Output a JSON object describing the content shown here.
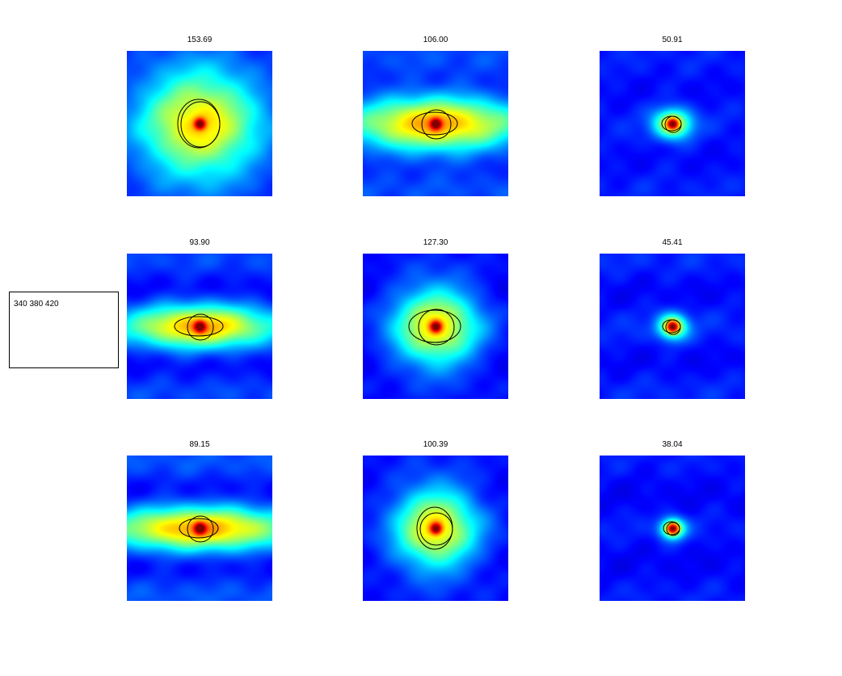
{
  "legend": {
    "text": "340 380 420"
  },
  "colormap": [
    "#00008f",
    "#0000ff",
    "#0080ff",
    "#00ffff",
    "#80ff80",
    "#ffff00",
    "#ff8000",
    "#ff0000",
    "#800000"
  ],
  "chart_data": [
    {
      "type": "heatmap",
      "title": "153.69",
      "blob": {
        "sx": 0.6,
        "sy": 0.55,
        "peak": 0.95
      },
      "stripes": 0.1,
      "bright": 0.3,
      "contours": [
        {
          "rx": 26,
          "ry": 30
        },
        {
          "rx": 24,
          "ry": 28
        }
      ]
    },
    {
      "type": "heatmap",
      "title": "106.00",
      "blob": {
        "sx": 0.8,
        "sy": 0.28,
        "peak": 0.95
      },
      "stripes": 0.45,
      "bright": 0.45,
      "contours": [
        {
          "rx": 28,
          "ry": 14
        },
        {
          "rx": 18,
          "ry": 18
        }
      ]
    },
    {
      "type": "heatmap",
      "title": "50.91",
      "blob": {
        "sx": 0.18,
        "sy": 0.14,
        "peak": 0.9
      },
      "stripes": 0.15,
      "bright": 0.35,
      "contours": [
        {
          "rx": 12,
          "ry": 9
        },
        {
          "rx": 10,
          "ry": 10
        }
      ]
    },
    {
      "type": "heatmap",
      "title": "93.90",
      "blob": {
        "sx": 0.7,
        "sy": 0.22,
        "peak": 0.95
      },
      "stripes": 0.5,
      "bright": 0.4,
      "contours": [
        {
          "rx": 30,
          "ry": 12
        },
        {
          "rx": 16,
          "ry": 16
        }
      ]
    },
    {
      "type": "heatmap",
      "title": "127.30",
      "blob": {
        "sx": 0.42,
        "sy": 0.4,
        "peak": 0.95
      },
      "stripes": 0.2,
      "bright": 0.2,
      "contours": [
        {
          "rx": 32,
          "ry": 20
        },
        {
          "rx": 22,
          "ry": 22
        }
      ]
    },
    {
      "type": "heatmap",
      "title": "45.41",
      "blob": {
        "sx": 0.14,
        "sy": 0.12,
        "peak": 0.9
      },
      "stripes": 0.25,
      "bright": 0.35,
      "contours": [
        {
          "rx": 11,
          "ry": 8
        },
        {
          "rx": 9,
          "ry": 9
        }
      ]
    },
    {
      "type": "heatmap",
      "title": "89.15",
      "blob": {
        "sx": 0.85,
        "sy": 0.22,
        "peak": 0.95
      },
      "stripes": 0.55,
      "bright": 0.45,
      "contours": [
        {
          "rx": 24,
          "ry": 12
        },
        {
          "rx": 16,
          "ry": 16
        }
      ]
    },
    {
      "type": "heatmap",
      "title": "100.39",
      "blob": {
        "sx": 0.4,
        "sy": 0.4,
        "peak": 0.95
      },
      "stripes": 0.15,
      "bright": 0.25,
      "contours": [
        {
          "rx": 22,
          "ry": 26
        },
        {
          "rx": 20,
          "ry": 20
        }
      ]
    },
    {
      "type": "heatmap",
      "title": "38.04",
      "blob": {
        "sx": 0.12,
        "sy": 0.1,
        "peak": 0.9
      },
      "stripes": 0.2,
      "bright": 0.3,
      "contours": [
        {
          "rx": 10,
          "ry": 8
        },
        {
          "rx": 8,
          "ry": 8
        }
      ]
    }
  ]
}
